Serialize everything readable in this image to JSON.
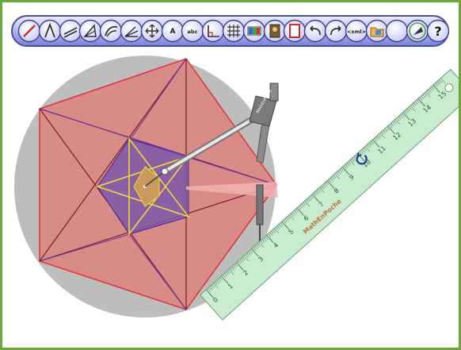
{
  "toolbar": {
    "tools": [
      {
        "name": "segment-tool-icon"
      },
      {
        "name": "angle-tool-icon"
      },
      {
        "name": "parallel-lines-tool-icon"
      },
      {
        "name": "triangle-tool-icon"
      },
      {
        "name": "arc-tool-icon"
      },
      {
        "name": "bisector-tool-icon"
      },
      {
        "name": "move-tool-icon"
      },
      {
        "name": "point-label-tool-icon",
        "label": "A"
      },
      {
        "name": "text-tool-icon",
        "label": "abc"
      },
      {
        "name": "right-angle-tool-icon"
      },
      {
        "name": "grid-tool-icon"
      },
      {
        "name": "color-palette-tool-icon"
      },
      {
        "name": "image-tool-icon"
      },
      {
        "name": "fill-tool-icon"
      },
      {
        "name": "undo-icon"
      },
      {
        "name": "redo-icon"
      },
      {
        "name": "xml-export-icon",
        "label": "<xml>"
      },
      {
        "name": "open-folder-icon"
      },
      {
        "name": "blank-tool-icon"
      },
      {
        "name": "settings-tool-icon"
      },
      {
        "name": "help-icon",
        "label": "?"
      }
    ]
  },
  "ruler": {
    "brand": "MathEnPoche",
    "ticks": [
      "0",
      "1",
      "2",
      "3",
      "4",
      "5",
      "6",
      "7",
      "8",
      "9",
      "10",
      "11",
      "12",
      "13",
      "14",
      "15"
    ],
    "color": "#c9ecd0"
  },
  "compass": {
    "brand": "MathEnPoche"
  },
  "colors": {
    "frame": "#6aa83a",
    "circle": "#bdbdbd",
    "pentagon_fill": "#d98b87",
    "pentagon_stroke": "#e0313a",
    "inner_pentagon": "#7d57a8",
    "star_yellow": "#f3dc3a",
    "center_star": "#c99a5a"
  }
}
